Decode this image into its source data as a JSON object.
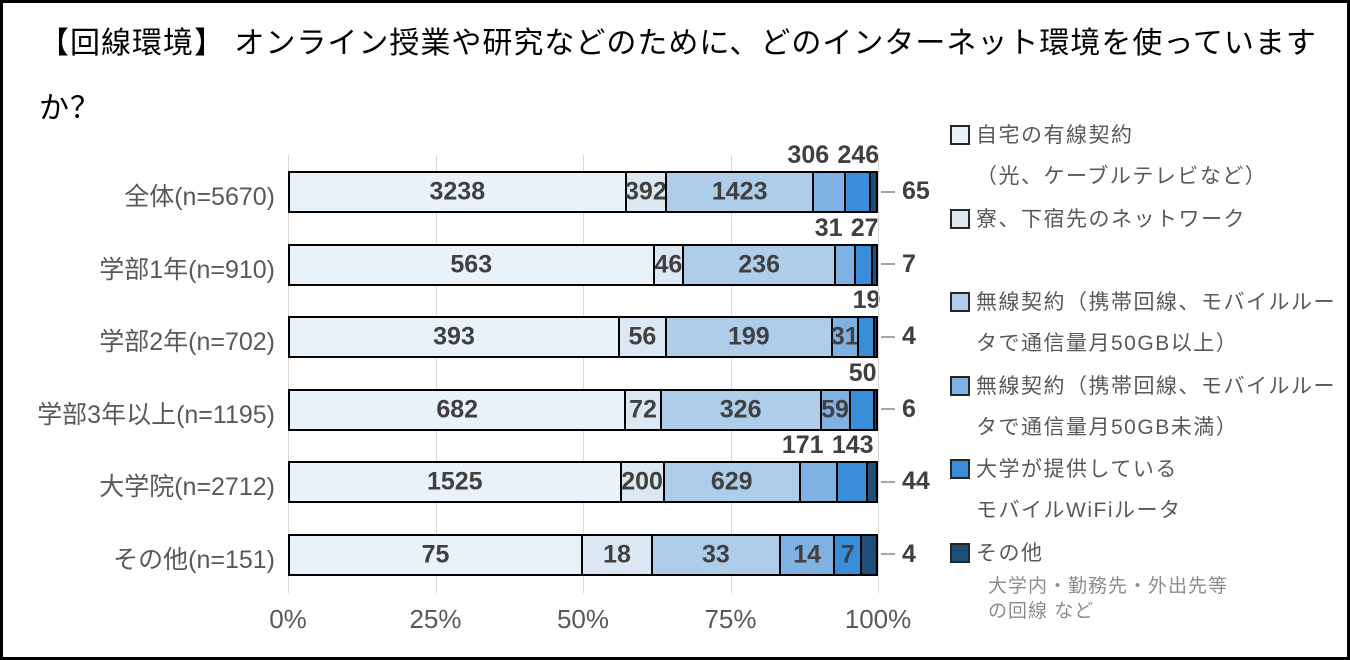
{
  "title": "【回線環境】 オンライン授業や研究などのために、どのインターネット環境を使っていますか？",
  "chart_data": {
    "type": "bar",
    "orientation": "horizontal",
    "stacked": true,
    "percent_stacked": true,
    "grid": true,
    "legend_position": "right",
    "xlim": [
      0,
      100
    ],
    "x_ticks": [
      "0%",
      "25%",
      "50%",
      "75%",
      "100%"
    ],
    "x_tick_values": [
      0,
      25,
      50,
      75,
      100
    ],
    "categories": [
      "全体(n=5670)",
      "学部1年(n=910)",
      "学部2年(n=702)",
      "学部3年以上(n=1195)",
      "大学院(n=2712)",
      "その他(n=151)"
    ],
    "totals": [
      5670,
      910,
      702,
      1195,
      2712,
      151
    ],
    "series": [
      {
        "name": "自宅の有線契約（光、ケーブルテレビなど）",
        "color": "#e9f1f9",
        "values": [
          3238,
          563,
          393,
          682,
          1525,
          75
        ]
      },
      {
        "name": "寮、下宿先のネットワーク",
        "color": "#dbe8f4",
        "values": [
          392,
          46,
          56,
          72,
          200,
          18
        ]
      },
      {
        "name": "無線契約（携帯回線、モバイルルータで通信量月50GB以上）",
        "color": "#aecdeb",
        "values": [
          1423,
          236,
          199,
          326,
          629,
          33
        ]
      },
      {
        "name": "無線契約（携帯回線、モバイルルータで通信量月50GB未満）",
        "color": "#7fb1e2",
        "values": [
          306,
          31,
          31,
          59,
          171,
          14
        ]
      },
      {
        "name": "大学が提供しているモバイルWiFiルータ",
        "color": "#3a8ed9",
        "values": [
          246,
          27,
          19,
          50,
          143,
          7
        ]
      },
      {
        "name": "その他",
        "color": "#1f4e79",
        "values": [
          65,
          7,
          4,
          6,
          44,
          4
        ]
      }
    ],
    "label_placement": [
      [
        "in",
        "in",
        "in",
        "above",
        "above",
        "right"
      ],
      [
        "in",
        "in",
        "in",
        "above",
        "above",
        "right"
      ],
      [
        "in",
        "in",
        "in",
        "in",
        "above",
        "right"
      ],
      [
        "in",
        "in",
        "in",
        "in",
        "above",
        "right"
      ],
      [
        "in",
        "in",
        "in",
        "above",
        "above",
        "right"
      ],
      [
        "in",
        "in",
        "in",
        "in",
        "in",
        "right"
      ]
    ]
  },
  "legend": {
    "items": [
      {
        "lines": [
          "自宅の有線契約",
          "（光、ケーブルテレビなど）"
        ],
        "color": "#e9f1f9"
      },
      {
        "lines": [
          "寮、下宿先のネットワーク"
        ],
        "color": "#dbe8f4"
      },
      {
        "lines": [
          "無線契約（携帯回線、モバイルルー",
          "タで通信量月50GB以上）"
        ],
        "color": "#aecdeb"
      },
      {
        "lines": [
          "無線契約（携帯回線、モバイルルー",
          "タで通信量月50GB未満）"
        ],
        "color": "#7fb1e2"
      },
      {
        "lines": [
          "大学が提供している",
          "モバイルWiFiルータ"
        ],
        "color": "#3a8ed9"
      },
      {
        "lines": [
          "その他"
        ],
        "color": "#1f4e79"
      }
    ],
    "note_lines": [
      "大学内・勤務先・外出先等",
      "の回線 など"
    ]
  },
  "colors": {
    "background": "#ffffff",
    "frame_border": "#000000",
    "gridline": "#d9d9d9",
    "bar_border": "#000000",
    "value_label": "#404040",
    "axis_text": "#595959",
    "legend_text": "#595959",
    "note_text": "#8c8c8c",
    "leader_line": "#a6a6a6"
  }
}
